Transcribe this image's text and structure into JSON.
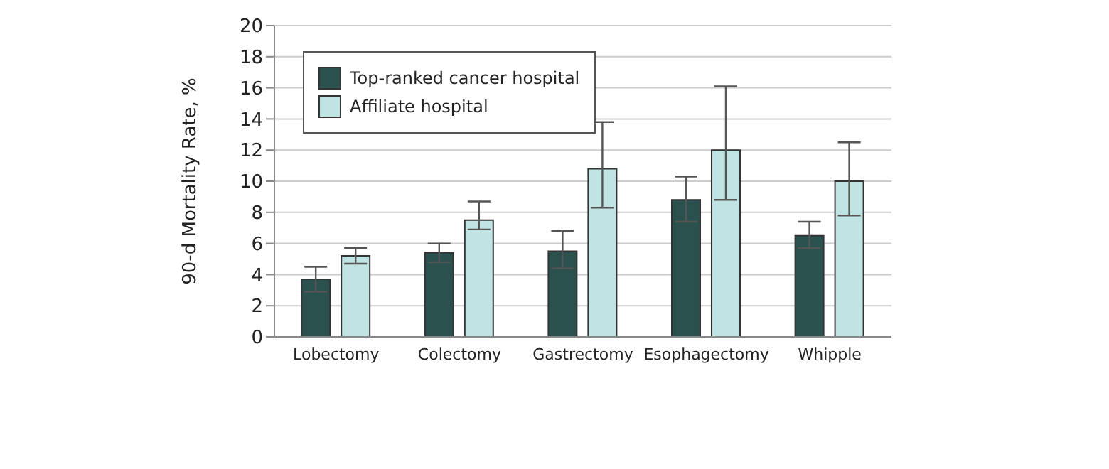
{
  "chart_data": {
    "type": "bar",
    "ylabel": "90-d Mortality Rate, %",
    "categories": [
      "Lobectomy",
      "Colectomy",
      "Gastrectomy",
      "Esophagectomy",
      "Whipple"
    ],
    "series": [
      {
        "name": "Top-ranked cancer hospital",
        "color": "#2b514f",
        "values": [
          3.7,
          5.4,
          5.5,
          8.8,
          6.5
        ],
        "errors": [
          [
            2.9,
            4.5
          ],
          [
            4.8,
            6.0
          ],
          [
            4.4,
            6.8
          ],
          [
            7.4,
            10.3
          ],
          [
            5.7,
            7.4
          ]
        ]
      },
      {
        "name": "Affiliate hospital",
        "color": "#bfe4e3",
        "values": [
          5.2,
          7.5,
          10.8,
          12.0,
          10.0
        ],
        "errors": [
          [
            4.7,
            5.7
          ],
          [
            6.9,
            8.7
          ],
          [
            8.3,
            13.8
          ],
          [
            8.8,
            16.1
          ],
          [
            7.8,
            12.5
          ]
        ]
      }
    ],
    "ylim": [
      0,
      20
    ],
    "yticks": [
      0,
      2,
      4,
      6,
      8,
      10,
      12,
      14,
      16,
      18,
      20
    ],
    "grid": "y",
    "legend": "top left"
  }
}
